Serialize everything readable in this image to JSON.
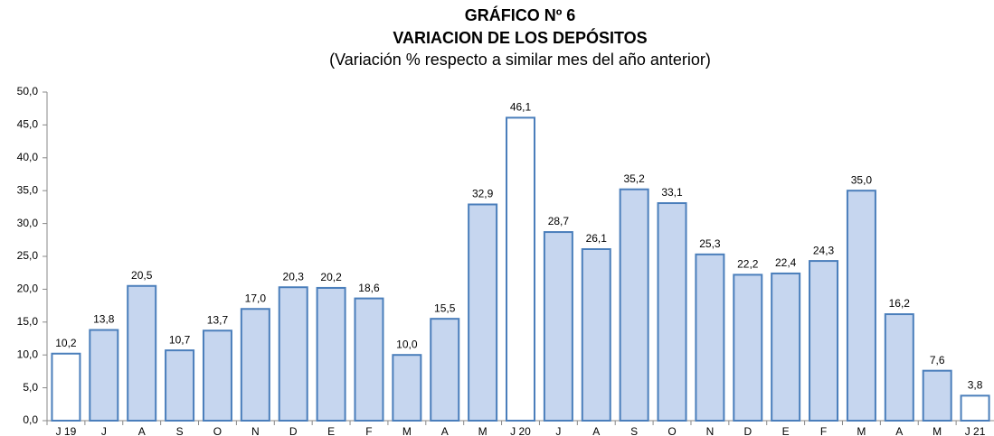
{
  "chart_data": {
    "type": "bar",
    "title": "GRÁFICO Nº 6",
    "subtitle": "VARIACION DE LOS DEPÓSITOS",
    "note": "(Variación % respecto a similar mes del año anterior)",
    "categories": [
      "J 19",
      "J",
      "A",
      "S",
      "O",
      "N",
      "D",
      "E",
      "F",
      "M",
      "A",
      "M",
      "J 20",
      "J",
      "A",
      "S",
      "O",
      "N",
      "D",
      "E",
      "F",
      "M",
      "A",
      "M",
      "J 21"
    ],
    "values": [
      10.2,
      13.8,
      20.5,
      10.7,
      13.7,
      17.0,
      20.3,
      20.2,
      18.6,
      10.0,
      15.5,
      32.9,
      46.1,
      28.7,
      26.1,
      35.2,
      33.1,
      25.3,
      22.2,
      22.4,
      24.3,
      35.0,
      16.2,
      7.6,
      3.8
    ],
    "value_labels": [
      "10,2",
      "13,8",
      "20,5",
      "10,7",
      "13,7",
      "17,0",
      "20,3",
      "20,2",
      "18,6",
      "10,0",
      "15,5",
      "32,9",
      "46,1",
      "28,7",
      "26,1",
      "35,2",
      "33,1",
      "25,3",
      "22,2",
      "22,4",
      "24,3",
      "35,0",
      "16,2",
      "7,6",
      "3,8"
    ],
    "colors": [
      "#ffffff",
      "#c6d6ef",
      "#c6d6ef",
      "#c6d6ef",
      "#c6d6ef",
      "#c6d6ef",
      "#c6d6ef",
      "#c6d6ef",
      "#c6d6ef",
      "#c6d6ef",
      "#c6d6ef",
      "#c6d6ef",
      "#ffffff",
      "#c6d6ef",
      "#c6d6ef",
      "#c6d6ef",
      "#c6d6ef",
      "#c6d6ef",
      "#c6d6ef",
      "#c6d6ef",
      "#c6d6ef",
      "#c6d6ef",
      "#c6d6ef",
      "#c6d6ef",
      "#ffffff"
    ],
    "edge_color": "#4a7ebb",
    "ylim": [
      0,
      50
    ],
    "yticks": [
      {
        "value": 0,
        "label": "0,0"
      },
      {
        "value": 5,
        "label": "5,0"
      },
      {
        "value": 10,
        "label": "10,0"
      },
      {
        "value": 15,
        "label": "15,0"
      },
      {
        "value": 20,
        "label": "20,0"
      },
      {
        "value": 25,
        "label": "25,0"
      },
      {
        "value": 30,
        "label": "30,0"
      },
      {
        "value": 35,
        "label": "35,0"
      },
      {
        "value": 40,
        "label": "40,0"
      },
      {
        "value": 45,
        "label": "45,0"
      },
      {
        "value": 50,
        "label": "50,0"
      }
    ],
    "grid": false
  }
}
